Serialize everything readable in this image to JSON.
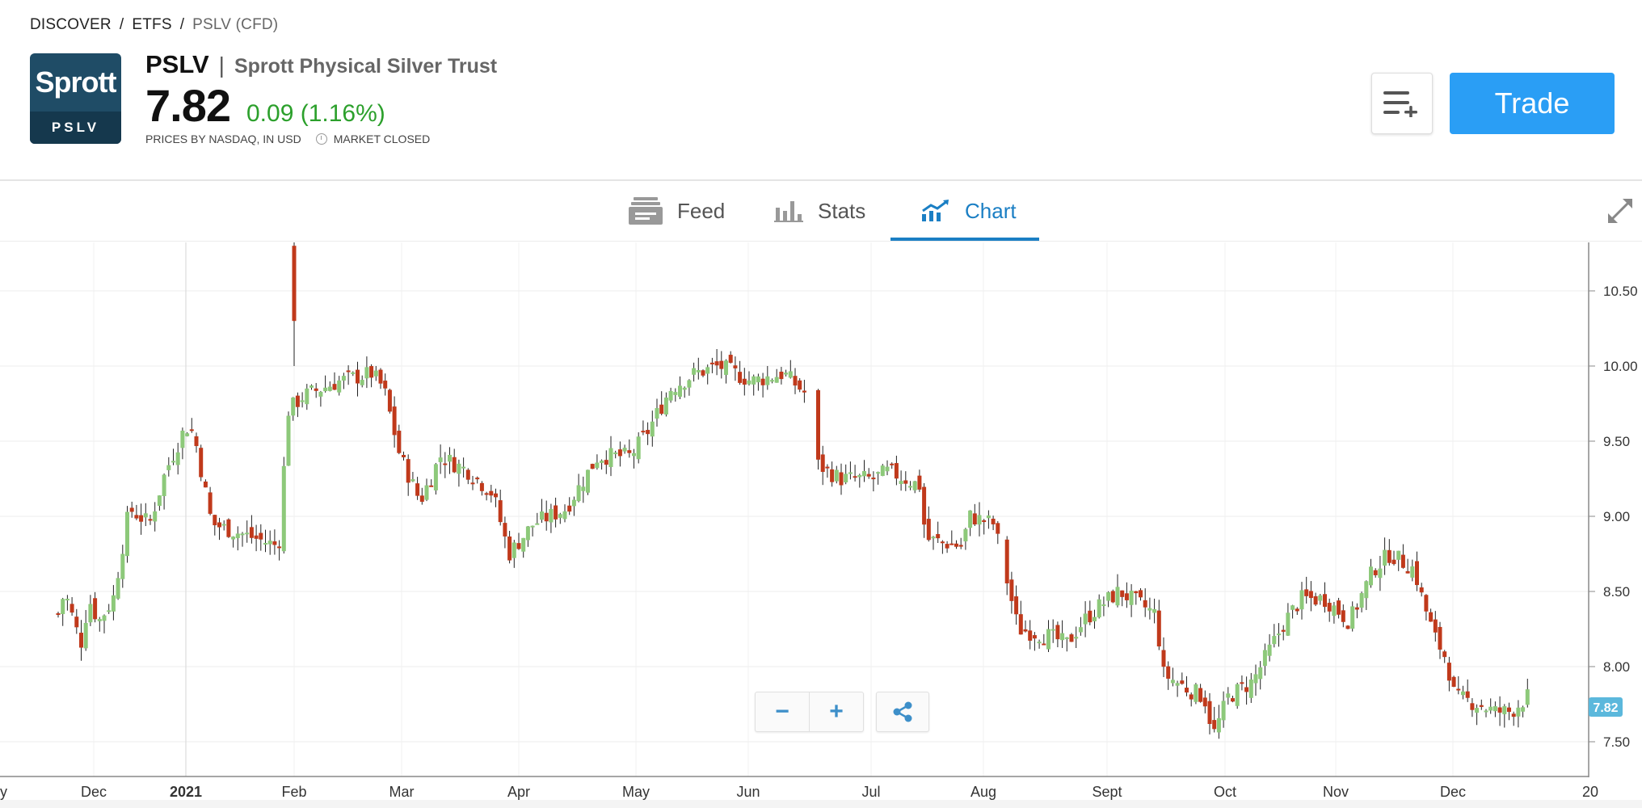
{
  "breadcrumb": {
    "items": [
      "DISCOVER",
      "ETFS"
    ],
    "current": "PSLV (CFD)"
  },
  "logo": {
    "top_text": "Sprott",
    "bottom_text": "PSLV"
  },
  "instrument": {
    "ticker": "PSLV",
    "name": "Sprott Physical Silver Trust",
    "price": "7.82",
    "change": "0.09 (1.16%)",
    "source": "PRICES BY NASDAQ, IN USD",
    "market_status": "MARKET CLOSED"
  },
  "actions": {
    "watchlist_icon": "add-to-list-icon",
    "trade_label": "Trade"
  },
  "tabs": [
    {
      "label": "Feed",
      "icon": "feed-icon"
    },
    {
      "label": "Stats",
      "icon": "stats-icon"
    },
    {
      "label": "Chart",
      "icon": "chart-icon",
      "active": true
    }
  ],
  "controls": {
    "zoom_out": "−",
    "zoom_in": "+",
    "share_icon": "share-icon",
    "expand_icon": "expand-icon"
  },
  "colors": {
    "up": "#8dc97a",
    "down": "#c0391b",
    "accent": "#2a9ef5",
    "tab_active": "#1b7fc4",
    "price_tag": "#5bb8dc"
  },
  "chart_data": {
    "type": "candlestick",
    "y_ticks": [
      "10.50",
      "10.00",
      "9.50",
      "9.00",
      "8.50",
      "8.00",
      "7.50"
    ],
    "ylim": [
      7.4,
      10.9
    ],
    "x_ticks": [
      {
        "label": "Dec",
        "bold": false
      },
      {
        "label": "2021",
        "bold": true
      },
      {
        "label": "Feb",
        "bold": false
      },
      {
        "label": "Mar",
        "bold": false
      },
      {
        "label": "Apr",
        "bold": false
      },
      {
        "label": "May",
        "bold": false
      },
      {
        "label": "Jun",
        "bold": false
      },
      {
        "label": "Jul",
        "bold": false
      },
      {
        "label": "Aug",
        "bold": false
      },
      {
        "label": "Sept",
        "bold": false
      },
      {
        "label": "Oct",
        "bold": false
      },
      {
        "label": "Nov",
        "bold": false
      },
      {
        "label": "Dec",
        "bold": false
      }
    ],
    "edge_labels": {
      "left": "y",
      "right": "20"
    },
    "last_price_tag": "7.82",
    "close_series": [
      [
        1,
        8.35
      ],
      [
        4,
        8.5
      ],
      [
        6,
        8.38
      ],
      [
        8,
        8.25
      ],
      [
        10,
        8.1
      ],
      [
        12,
        8.45
      ],
      [
        14,
        8.4
      ],
      [
        16,
        8.35
      ],
      [
        18,
        8.28
      ],
      [
        20,
        8.45
      ],
      [
        22,
        8.85
      ],
      [
        24,
        9.05
      ],
      [
        26,
        9.0
      ],
      [
        28,
        9.1
      ],
      [
        30,
        8.95
      ],
      [
        32,
        9.05
      ],
      [
        34,
        9.35
      ],
      [
        36,
        9.25
      ],
      [
        38,
        9.3
      ],
      [
        40,
        9.35
      ],
      [
        42,
        9.6
      ],
      [
        44,
        9.65
      ],
      [
        46,
        9.55
      ],
      [
        48,
        8.85
      ],
      [
        50,
        9.05
      ],
      [
        52,
        8.95
      ],
      [
        54,
        9.0
      ],
      [
        56,
        8.85
      ],
      [
        58,
        9.1
      ],
      [
        60,
        8.95
      ],
      [
        62,
        8.85
      ],
      [
        64,
        9.2
      ],
      [
        66,
        8.8
      ],
      [
        68,
        9.65
      ],
      [
        70,
        9.8
      ],
      [
        72,
        9.75
      ],
      [
        74,
        9.65
      ],
      [
        76,
        9.7
      ],
      [
        78,
        9.8
      ],
      [
        80,
        9.9
      ],
      [
        82,
        9.85
      ],
      [
        84,
        9.95
      ],
      [
        86,
        9.85
      ],
      [
        88,
        9.9
      ],
      [
        90,
        10.0
      ],
      [
        92,
        10.05
      ],
      [
        94,
        10.0
      ],
      [
        96,
        9.95
      ],
      [
        98,
        9.75
      ],
      [
        100,
        9.55
      ],
      [
        102,
        9.2
      ],
      [
        104,
        9.3
      ],
      [
        106,
        9.4
      ],
      [
        108,
        9.35
      ],
      [
        110,
        9.3
      ],
      [
        112,
        9.45
      ],
      [
        114,
        9.4
      ],
      [
        116,
        9.3
      ],
      [
        118,
        9.15
      ],
      [
        120,
        9.05
      ],
      [
        122,
        8.95
      ],
      [
        124,
        9.0
      ],
      [
        126,
        8.75
      ],
      [
        128,
        8.85
      ],
      [
        130,
        8.9
      ],
      [
        132,
        9.0
      ],
      [
        134,
        8.95
      ],
      [
        136,
        9.05
      ],
      [
        138,
        8.95
      ],
      [
        140,
        9.1
      ],
      [
        142,
        9.25
      ],
      [
        144,
        9.3
      ],
      [
        146,
        9.4
      ],
      [
        148,
        9.35
      ],
      [
        150,
        9.4
      ],
      [
        152,
        9.45
      ],
      [
        154,
        9.35
      ],
      [
        156,
        9.5
      ],
      [
        158,
        9.6
      ],
      [
        160,
        9.55
      ],
      [
        162,
        9.7
      ],
      [
        164,
        9.85
      ],
      [
        166,
        9.9
      ],
      [
        168,
        9.75
      ],
      [
        170,
        9.8
      ],
      [
        172,
        9.9
      ],
      [
        174,
        9.95
      ],
      [
        176,
        10.0
      ],
      [
        178,
        9.95
      ],
      [
        180,
        9.9
      ],
      [
        182,
        9.85
      ],
      [
        184,
        9.95
      ],
      [
        186,
        9.95
      ],
      [
        188,
        10.1
      ],
      [
        190,
        9.9
      ],
      [
        192,
        9.85
      ],
      [
        194,
        9.9
      ],
      [
        196,
        9.95
      ],
      [
        198,
        9.9
      ],
      [
        200,
        9.95
      ],
      [
        202,
        9.85
      ],
      [
        204,
        9.9
      ],
      [
        206,
        9.75
      ]
    ]
  }
}
